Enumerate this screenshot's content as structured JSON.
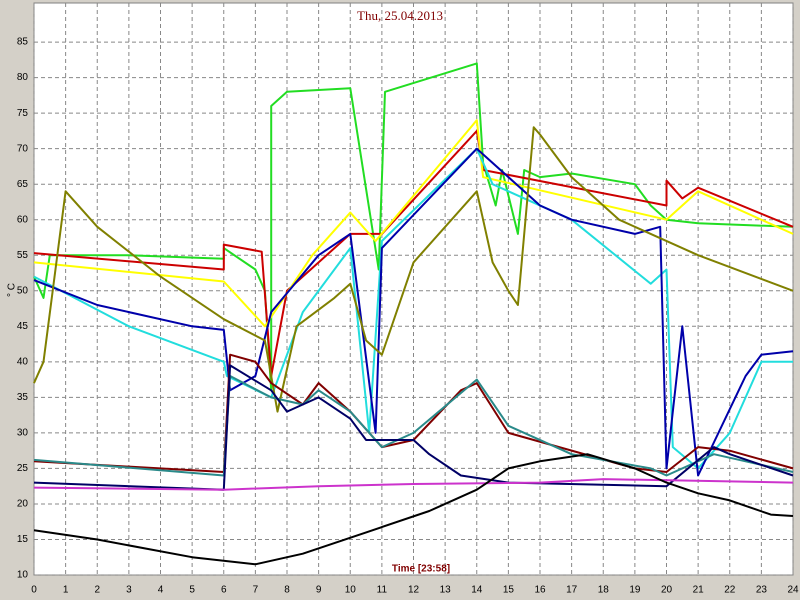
{
  "chart_data": {
    "type": "line",
    "title": "Thu, 25.04.2013",
    "y_label": "° C",
    "x_label": "Time [23:58]",
    "xlim": [
      0,
      24
    ],
    "xticks": [
      0,
      1,
      2,
      3,
      4,
      5,
      6,
      7,
      8,
      9,
      10,
      11,
      12,
      13,
      14,
      15,
      16,
      17,
      18,
      19,
      20,
      21,
      22,
      23,
      24
    ],
    "ylim": [
      10,
      90.5
    ],
    "yticks": [
      10,
      15,
      20,
      25,
      30,
      35,
      40,
      45,
      50,
      55,
      60,
      65,
      70,
      75,
      80,
      85
    ],
    "grid": true,
    "series": [
      {
        "color": "#22dd22",
        "x": [
          0,
          0.3,
          0.5,
          1,
          3,
          6,
          6,
          7,
          7.3,
          7.5,
          7.5,
          8,
          10,
          10.9,
          11.1,
          14,
          14.2,
          14.6,
          14.8,
          15.3,
          15.5,
          16,
          17,
          19,
          19.5,
          20,
          21,
          24
        ],
        "values": [
          52,
          49,
          55,
          55,
          55,
          54.5,
          56,
          53,
          50,
          36,
          76,
          78,
          78.5,
          53,
          78,
          82,
          68,
          62,
          67,
          58,
          67,
          66,
          66.5,
          65,
          62,
          60,
          59.5,
          59
        ]
      },
      {
        "color": "#cc0000",
        "x": [
          0,
          6,
          6,
          7.2,
          7.5,
          8,
          10,
          11,
          14,
          14.2,
          20,
          20,
          20.5,
          21,
          24
        ],
        "values": [
          55.3,
          53,
          56.5,
          55.5,
          38,
          50,
          58,
          58,
          72.5,
          67,
          62,
          65.5,
          63,
          64.5,
          59
        ]
      },
      {
        "color": "#ffff00",
        "x": [
          0,
          6,
          7.3,
          8.8,
          10,
          10.8,
          14,
          14.2,
          20,
          21,
          24
        ],
        "values": [
          54,
          51.3,
          45,
          55,
          61,
          57,
          74,
          66,
          60,
          64,
          58
        ]
      },
      {
        "color": "#22dddd",
        "x": [
          0,
          3,
          6,
          6.1,
          7.5,
          8.5,
          10,
          10.6,
          11,
          14,
          14.5,
          17,
          19.5,
          20,
          20.2,
          21,
          22,
          23,
          24
        ],
        "values": [
          52,
          45,
          40,
          38,
          35,
          47,
          56,
          30,
          57,
          70,
          65,
          60,
          51,
          53,
          28,
          25,
          30,
          40,
          40
        ]
      },
      {
        "color": "#0000aa",
        "x": [
          0,
          2,
          5,
          6,
          6.2,
          7,
          7.5,
          9,
          10,
          10.8,
          11,
          14,
          16,
          17,
          19,
          19.8,
          20,
          20.5,
          21,
          22.5,
          23,
          24
        ],
        "values": [
          51.5,
          48,
          45,
          44.5,
          36,
          38,
          47,
          55,
          58,
          30,
          56,
          70,
          62,
          60,
          58,
          59,
          25,
          45,
          24,
          38,
          41,
          41.5
        ]
      },
      {
        "color": "#808000",
        "x": [
          0,
          0.3,
          1,
          2,
          4,
          6,
          7.3,
          7.7,
          8.3,
          9.5,
          10,
          10.5,
          11,
          12,
          14,
          14.5,
          15,
          15.3,
          15.8,
          16,
          17,
          18.5,
          21,
          24
        ],
        "values": [
          37,
          40,
          64,
          59,
          52,
          46,
          43,
          33,
          45,
          49,
          51,
          43,
          41,
          54,
          64,
          54,
          50,
          48,
          73,
          72,
          66,
          60,
          55,
          50
        ]
      },
      {
        "color": "#800000",
        "x": [
          0,
          6,
          6.2,
          7,
          7.5,
          8.5,
          9,
          10,
          11,
          12,
          13.5,
          14,
          15,
          19,
          20,
          21,
          22,
          24
        ],
        "values": [
          26,
          24.5,
          41,
          40,
          37,
          34,
          37,
          33,
          28,
          29,
          36,
          37,
          30,
          25,
          24.5,
          28,
          27.5,
          25
        ]
      },
      {
        "color": "#2a8a8a",
        "x": [
          0,
          6,
          6.2,
          7.5,
          8.5,
          9,
          10,
          11,
          12,
          14,
          15,
          17,
          19.5,
          20,
          21.5,
          22.5,
          24
        ],
        "values": [
          26.2,
          24,
          38,
          35,
          34,
          36,
          33,
          28,
          30,
          37.5,
          31,
          27,
          25,
          24,
          27,
          26,
          24.5
        ]
      },
      {
        "color": "#000066",
        "x": [
          0,
          6,
          6.2,
          7.5,
          8,
          9,
          10,
          10.5,
          12,
          12.5,
          13.5,
          15,
          20,
          21.5,
          22,
          24
        ],
        "values": [
          23,
          22,
          39.5,
          36,
          33,
          35,
          32,
          29,
          29,
          27,
          24,
          23,
          22.5,
          28,
          27,
          24
        ]
      },
      {
        "color": "#cc33cc",
        "x": [
          0,
          6,
          9,
          12,
          16,
          18,
          24
        ],
        "values": [
          22.3,
          22,
          22.5,
          22.8,
          23,
          23.5,
          23
        ]
      },
      {
        "color": "#000000",
        "x": [
          0,
          2,
          5,
          7,
          8.5,
          10.5,
          12.5,
          14,
          15,
          16,
          17.5,
          19,
          20,
          21,
          22,
          23.3,
          24
        ],
        "values": [
          16.3,
          15,
          12.5,
          11.5,
          13,
          16,
          19,
          22,
          25,
          26,
          27,
          25,
          23,
          21.5,
          20.5,
          18.5,
          18.3
        ]
      }
    ]
  }
}
